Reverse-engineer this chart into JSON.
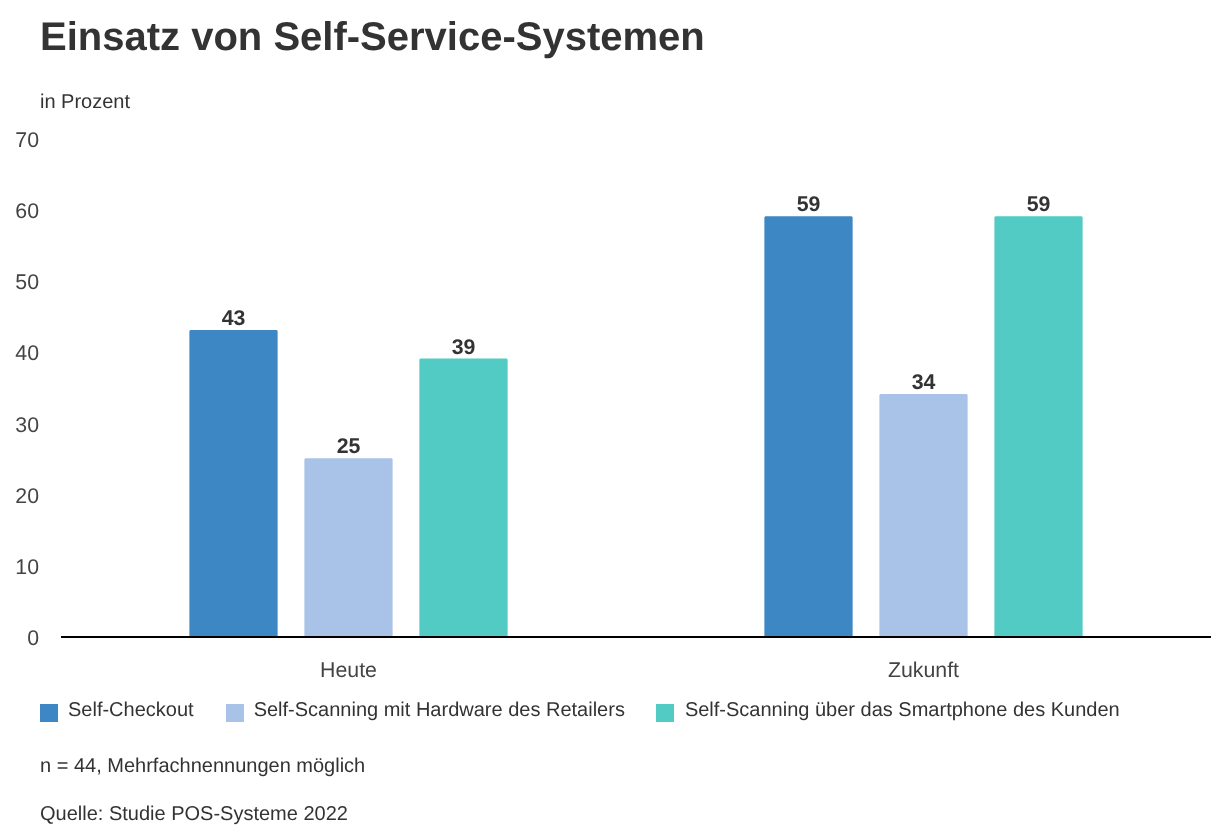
{
  "chart_data": {
    "type": "bar",
    "title": "Einsatz von Self-Service-Systemen",
    "ylabel": "in Prozent",
    "categories": [
      "Heute",
      "Zukunft"
    ],
    "series": [
      {
        "name": "Self-Checkout",
        "color": "#3d88c4",
        "values": [
          43,
          59
        ]
      },
      {
        "name": "Self-Scanning mit Hardware des Retailers",
        "color": "#a9c3e8",
        "values": [
          25,
          34
        ]
      },
      {
        "name": "Self-Scanning über das Smartphone des Kunden",
        "color": "#52cbc4",
        "values": [
          39,
          59
        ]
      }
    ],
    "ylim": [
      0,
      70
    ],
    "yticks": [
      0,
      10,
      20,
      30,
      40,
      50,
      60,
      70
    ],
    "grid": false,
    "legend": "bottom",
    "data_labels": true,
    "annotations": [
      "n = 44, Mehrfachnennungen möglich",
      "Quelle: Studie POS-Systeme 2022"
    ]
  }
}
